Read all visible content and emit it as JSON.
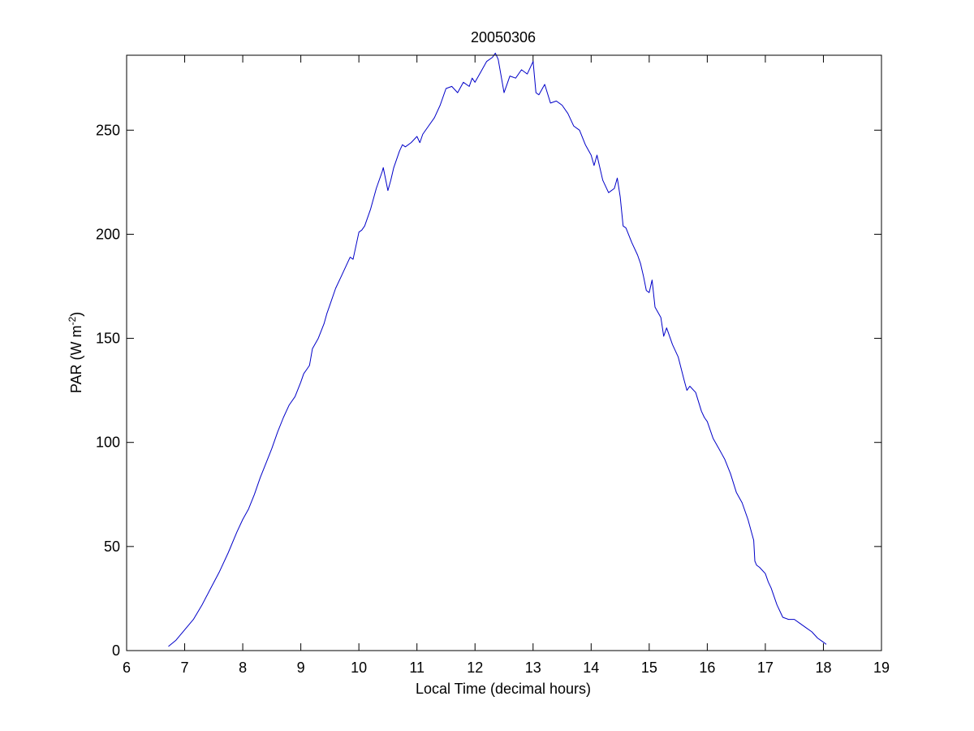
{
  "chart_data": {
    "type": "line",
    "title": "20050306",
    "xlabel": "Local Time (decimal hours)",
    "ylabel": "PAR (W m-2)",
    "ylabel_parts": {
      "main": "PAR (W m",
      "superscript": "-2",
      "suffix": ")"
    },
    "xlim": [
      6,
      19
    ],
    "ylim": [
      0,
      286
    ],
    "xticks": [
      6,
      7,
      8,
      9,
      10,
      11,
      12,
      13,
      14,
      15,
      16,
      17,
      18,
      19
    ],
    "yticks": [
      0,
      50,
      100,
      150,
      200,
      250
    ],
    "grid": false,
    "series": [
      {
        "color": "#0000c8",
        "x": [
          6.72,
          6.85,
          7.0,
          7.15,
          7.3,
          7.45,
          7.6,
          7.75,
          7.9,
          8.0,
          8.1,
          8.2,
          8.3,
          8.4,
          8.5,
          8.6,
          8.7,
          8.8,
          8.9,
          9.0,
          9.05,
          9.1,
          9.15,
          9.2,
          9.3,
          9.4,
          9.45,
          9.5,
          9.6,
          9.7,
          9.8,
          9.85,
          9.9,
          10.0,
          10.05,
          10.1,
          10.2,
          10.3,
          10.4,
          10.42,
          10.5,
          10.55,
          10.6,
          10.7,
          10.75,
          10.8,
          10.9,
          11.0,
          11.05,
          11.1,
          11.2,
          11.3,
          11.4,
          11.5,
          11.6,
          11.7,
          11.8,
          11.9,
          11.95,
          12.0,
          12.1,
          12.2,
          12.3,
          12.35,
          12.4,
          12.5,
          12.55,
          12.6,
          12.7,
          12.8,
          12.9,
          13.0,
          13.05,
          13.1,
          13.2,
          13.3,
          13.4,
          13.5,
          13.6,
          13.7,
          13.8,
          13.9,
          14.0,
          14.05,
          14.1,
          14.2,
          14.3,
          14.4,
          14.45,
          14.5,
          14.55,
          14.6,
          14.7,
          14.8,
          14.85,
          14.9,
          14.95,
          15.0,
          15.05,
          15.1,
          15.2,
          15.25,
          15.3,
          15.4,
          15.5,
          15.6,
          15.65,
          15.7,
          15.8,
          15.9,
          15.95,
          16.0,
          16.1,
          16.2,
          16.3,
          16.4,
          16.5,
          16.6,
          16.7,
          16.8,
          16.82,
          16.85,
          16.9,
          17.0,
          17.05,
          17.1,
          17.2,
          17.3,
          17.4,
          17.5,
          17.6,
          17.7,
          17.8,
          17.9,
          18.0,
          18.05
        ],
        "y": [
          2,
          5,
          10,
          15,
          22,
          30,
          38,
          47,
          57,
          63,
          68,
          75,
          83,
          90,
          97,
          105,
          112,
          118,
          122,
          129,
          133,
          135,
          137,
          145,
          150,
          157,
          162,
          166,
          174,
          180,
          186,
          189,
          188,
          201,
          202,
          204,
          212,
          222,
          230,
          232,
          221,
          226,
          232,
          240,
          243,
          242,
          244,
          247,
          244,
          248,
          252,
          256,
          262,
          270,
          271,
          268,
          273,
          271,
          275,
          273,
          278,
          283,
          285,
          287,
          284,
          268,
          272,
          276,
          275,
          279,
          277,
          283,
          268,
          267,
          272,
          263,
          264,
          262,
          258,
          252,
          250,
          243,
          238,
          233,
          238,
          226,
          220,
          222,
          227,
          218,
          204,
          203,
          196,
          190,
          186,
          180,
          173,
          172,
          178,
          165,
          160,
          151,
          155,
          147,
          141,
          130,
          125,
          127,
          124,
          115,
          112,
          110,
          102,
          97,
          92,
          85,
          76,
          71,
          63,
          53,
          43,
          41,
          40,
          37,
          33,
          30,
          22,
          16,
          15,
          15,
          13,
          11,
          9,
          6,
          4,
          3
        ]
      }
    ]
  }
}
